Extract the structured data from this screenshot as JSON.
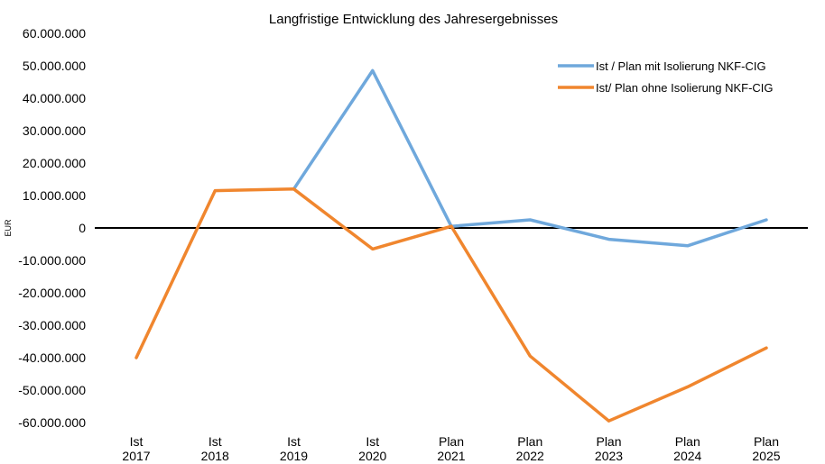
{
  "chart_data": {
    "type": "line",
    "title": "Langfristige Entwicklung des Jahresergebnisses",
    "ylabel": "EUR",
    "xlabel": "",
    "ylim": [
      -60000000,
      60000000
    ],
    "ytick_values": [
      60000000,
      50000000,
      40000000,
      30000000,
      20000000,
      10000000,
      0,
      -10000000,
      -20000000,
      -30000000,
      -40000000,
      -50000000,
      -60000000
    ],
    "ytick_labels": [
      "60.000.000",
      "50.000.000",
      "40.000.000",
      "30.000.000",
      "20.000.000",
      "10.000.000",
      "0",
      "-10.000.000",
      "-20.000.000",
      "-30.000.000",
      "-40.000.000",
      "-50.000.000",
      "-60.000.000"
    ],
    "categories": [
      [
        "Ist",
        "2017"
      ],
      [
        "Ist",
        "2018"
      ],
      [
        "Ist",
        "2019"
      ],
      [
        "Ist",
        "2020"
      ],
      [
        "Plan",
        "2021"
      ],
      [
        "Plan",
        "2022"
      ],
      [
        "Plan",
        "2023"
      ],
      [
        "Plan",
        "2024"
      ],
      [
        "Plan",
        "2025"
      ]
    ],
    "grid": false,
    "zero_line": true,
    "legend_position": "top-right",
    "series": [
      {
        "name": "Ist / Plan mit Isolierung NKF-CIG",
        "color": "#6fa8dc",
        "values": [
          null,
          null,
          12000000,
          48500000,
          500000,
          2500000,
          -3500000,
          -5500000,
          2500000
        ]
      },
      {
        "name": "Ist/ Plan ohne Isolierung NKF-CIG",
        "color": "#f0862e",
        "values": [
          -40000000,
          11500000,
          12000000,
          -6500000,
          500000,
          -39500000,
          -59500000,
          -49000000,
          -37000000
        ]
      }
    ]
  }
}
